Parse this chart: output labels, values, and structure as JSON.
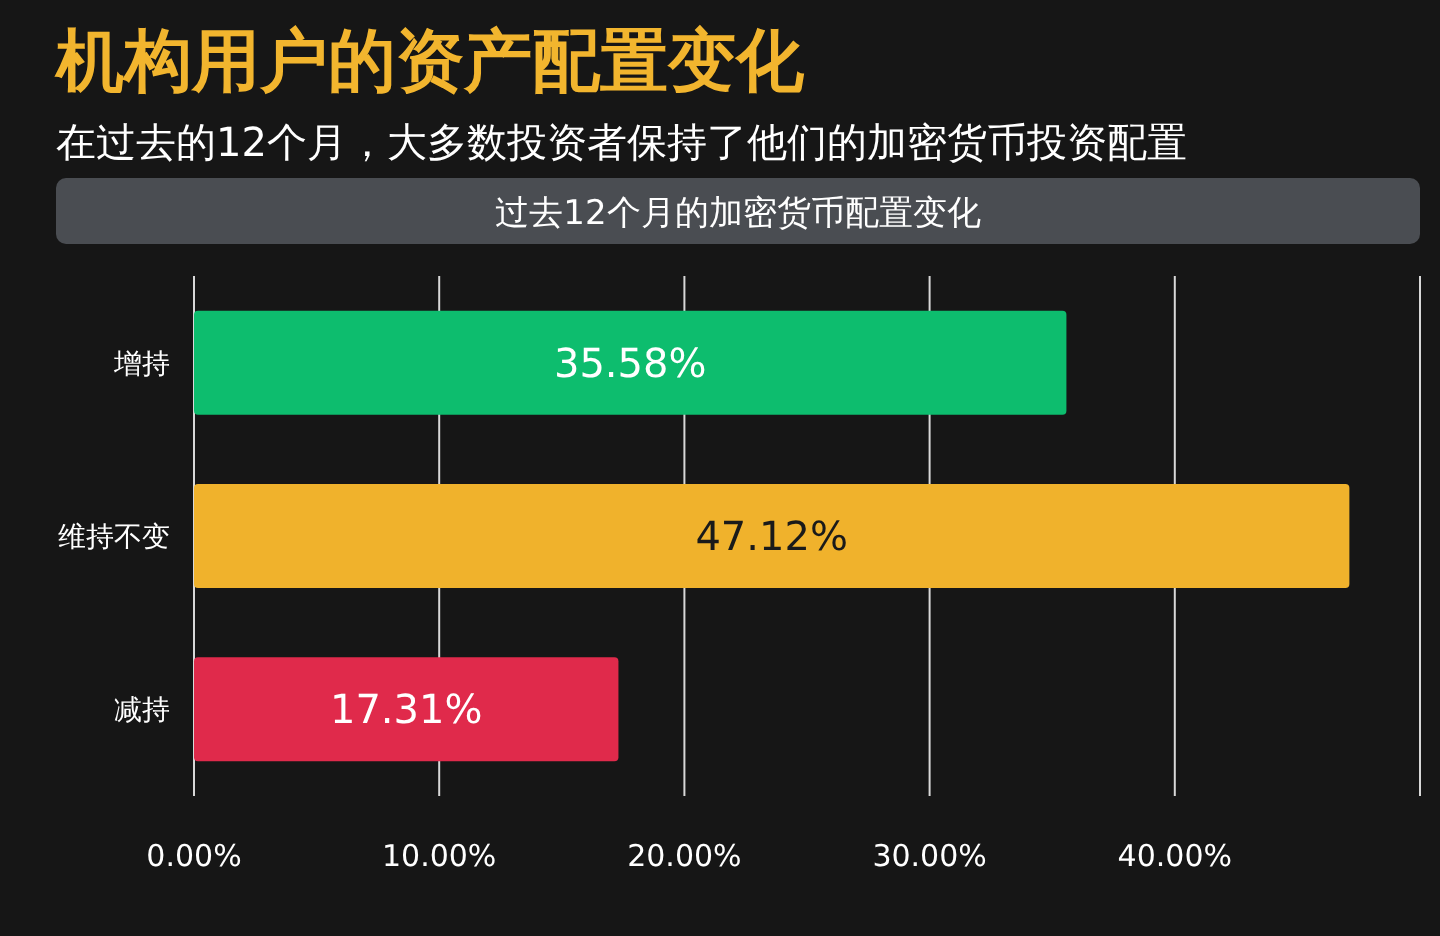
{
  "chart_data": {
    "type": "bar",
    "orientation": "horizontal",
    "title": "机构用户的资产配置变化",
    "subtitle": "在过去的12个月，大多数投资者保持了他们的加密货币投资配置",
    "annotations": [
      "过去12个月的加密货币配置变化"
    ],
    "categories": [
      "增持",
      "维持不变",
      "减持"
    ],
    "values": [
      35.58,
      47.12,
      17.31
    ],
    "colors": [
      "#0dbd6e",
      "#f0b22c",
      "#e02a4b"
    ],
    "value_labels": [
      "35.58%",
      "47.12%",
      "17.31%"
    ],
    "xlim": [
      0,
      50
    ],
    "xticks": [
      {
        "value": 0,
        "label": "0.00%"
      },
      {
        "value": 10,
        "label": "10.00%"
      },
      {
        "value": 20,
        "label": "20.00%"
      },
      {
        "value": 30,
        "label": "30.00%"
      },
      {
        "value": 40,
        "label": "40.00%"
      },
      {
        "value": 50,
        "label": null
      }
    ],
    "grid": "x"
  }
}
